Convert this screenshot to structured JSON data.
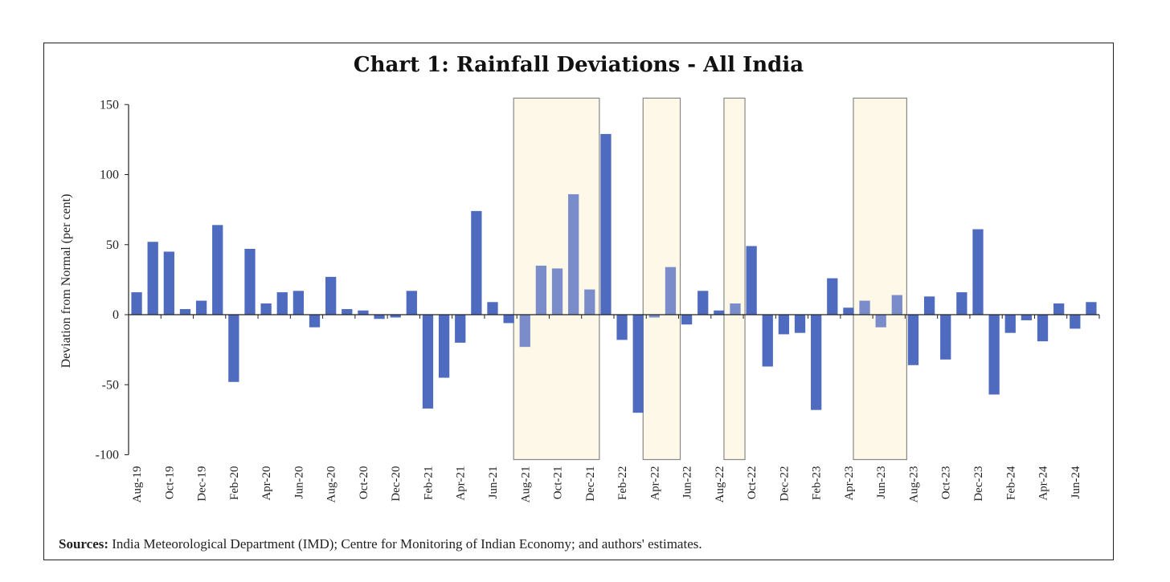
{
  "title": "Chart 1: Rainfall Deviations - All India",
  "source_label": "Sources:",
  "source_text": " India Meteorological Department (IMD); Centre for Monitoring of Indian Economy; and authors' estimates.",
  "colors": {
    "bar": "#4f6bbf",
    "bar_highlight": "#7a8dca",
    "shade_fill": "#fdf8e8",
    "shade_border": "#888888"
  },
  "chart_data": {
    "type": "bar",
    "title": "Chart 1: Rainfall Deviations - All India",
    "xlabel": "",
    "ylabel": "Deviation from Normal (per cent)",
    "ylim": [
      -100,
      150
    ],
    "yticks": [
      -100,
      -50,
      0,
      50,
      100,
      150
    ],
    "grid": false,
    "categories": [
      "Aug-19",
      "Sep-19",
      "Oct-19",
      "Nov-19",
      "Dec-19",
      "Jan-20",
      "Feb-20",
      "Mar-20",
      "Apr-20",
      "May-20",
      "Jun-20",
      "Jul-20",
      "Aug-20",
      "Sep-20",
      "Oct-20",
      "Nov-20",
      "Dec-20",
      "Jan-21",
      "Feb-21",
      "Mar-21",
      "Apr-21",
      "May-21",
      "Jun-21",
      "Jul-21",
      "Aug-21",
      "Sep-21",
      "Oct-21",
      "Nov-21",
      "Dec-21",
      "Jan-22",
      "Feb-22",
      "Mar-22",
      "Apr-22",
      "May-22",
      "Jun-22",
      "Jul-22",
      "Aug-22",
      "Sep-22",
      "Oct-22",
      "Nov-22",
      "Dec-22",
      "Jan-23",
      "Feb-23",
      "Mar-23",
      "Apr-23",
      "May-23",
      "Jun-23",
      "Jul-23",
      "Aug-23",
      "Sep-23",
      "Oct-23",
      "Nov-23",
      "Dec-23",
      "Jan-24",
      "Feb-24",
      "Mar-24",
      "Apr-24",
      "May-24",
      "Jun-24",
      "Jul-24"
    ],
    "tick_labels": [
      "Aug-19",
      "Oct-19",
      "Dec-19",
      "Feb-20",
      "Apr-20",
      "Jun-20",
      "Aug-20",
      "Oct-20",
      "Dec-20",
      "Feb-21",
      "Apr-21",
      "Jun-21",
      "Aug-21",
      "Oct-21",
      "Dec-21",
      "Feb-22",
      "Apr-22",
      "Jun-22",
      "Aug-22",
      "Oct-22",
      "Dec-22",
      "Feb-23",
      "Apr-23",
      "Jun-23",
      "Aug-23",
      "Oct-23",
      "Dec-23",
      "Feb-24",
      "Apr-24",
      "Jun-24"
    ],
    "values": [
      16,
      52,
      45,
      4,
      10,
      64,
      -48,
      47,
      8,
      16,
      17,
      -9,
      27,
      4,
      3,
      -3,
      -2,
      17,
      -67,
      -45,
      -20,
      74,
      9,
      -6,
      -23,
      35,
      33,
      86,
      18,
      129,
      -18,
      -70,
      -2,
      34,
      -7,
      17,
      3,
      8,
      49,
      -37,
      -14,
      -13,
      -68,
      26,
      5,
      10,
      -9,
      14,
      -36,
      13,
      -32,
      16,
      61,
      -57,
      -13,
      -4,
      -19,
      8,
      -10,
      9
    ],
    "highlight_ranges": [
      [
        "Aug-21",
        "Dec-21"
      ],
      [
        "Apr-22",
        "May-22"
      ],
      [
        "Sep-22",
        "Sep-22"
      ],
      [
        "May-23",
        "Jul-23"
      ]
    ]
  }
}
